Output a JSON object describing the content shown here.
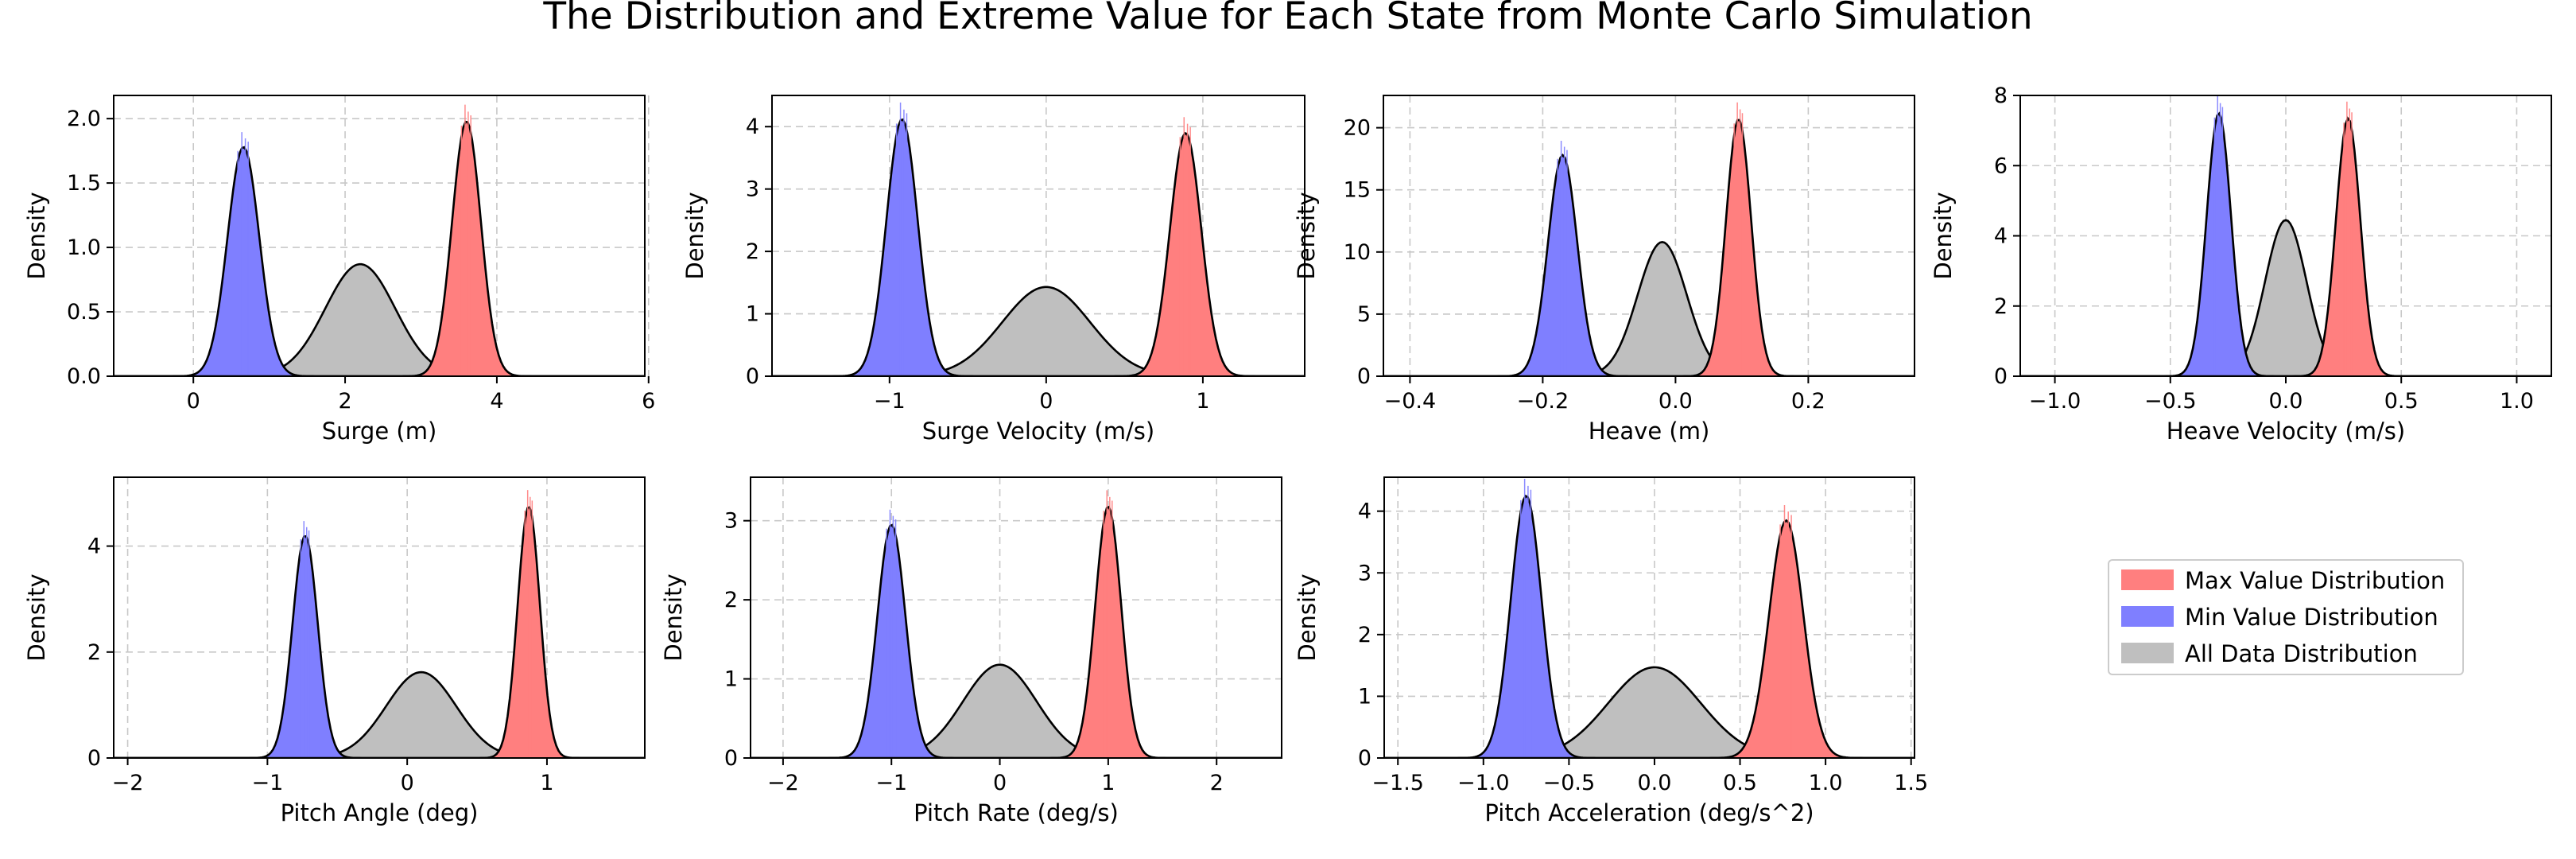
{
  "figure_title": "The Distribution and Extreme Value for Each State from Monte Carlo Simulation",
  "colors": {
    "max": "#ff7f7f",
    "min": "#7f7fff",
    "all": "#bfbfbf",
    "curve": "#000000",
    "grid": "#c8c8c8"
  },
  "legend": {
    "placement": "right of bottom row",
    "entries": [
      {
        "label": "Max Value Distribution",
        "color": "#ff7f7f"
      },
      {
        "label": "Min Value Distribution",
        "color": "#7f7fff"
      },
      {
        "label": "All Data Distribution",
        "color": "#bfbfbf"
      }
    ]
  },
  "chart_data": [
    {
      "type": "area",
      "xlabel": "Surge (m)",
      "ylabel": "Density",
      "xlim": [
        -1.05,
        5.95
      ],
      "ylim": [
        0,
        2.18
      ],
      "xticks": [
        0,
        2,
        4,
        6
      ],
      "xtick_labels": [
        "0",
        "2",
        "4",
        "6"
      ],
      "yticks": [
        0,
        0.5,
        1.0,
        1.5,
        2.0
      ],
      "ytick_labels": [
        "0.0",
        "0.5",
        "1.0",
        "1.5",
        "2.0"
      ],
      "series": [
        {
          "name": "All Data Distribution",
          "mean": 2.2,
          "sd": 0.46,
          "peak": 0.87
        },
        {
          "name": "Min Value Distribution",
          "mean": 0.66,
          "sd": 0.21,
          "peak": 1.78
        },
        {
          "name": "Max Value Distribution",
          "mean": 3.6,
          "sd": 0.19,
          "peak": 1.98
        }
      ]
    },
    {
      "type": "area",
      "xlabel": "Surge Velocity (m/s)",
      "ylabel": "Density",
      "xlim": [
        -1.75,
        1.65
      ],
      "ylim": [
        0,
        4.5
      ],
      "xticks": [
        -1,
        0,
        1
      ],
      "xtick_labels": [
        "−1",
        "0",
        "1"
      ],
      "yticks": [
        0,
        1,
        2,
        3,
        4
      ],
      "ytick_labels": [
        "0",
        "1",
        "2",
        "3",
        "4"
      ],
      "series": [
        {
          "name": "All Data Distribution",
          "mean": 0.0,
          "sd": 0.28,
          "peak": 1.43
        },
        {
          "name": "Min Value Distribution",
          "mean": -0.92,
          "sd": 0.1,
          "peak": 4.12
        },
        {
          "name": "Max Value Distribution",
          "mean": 0.89,
          "sd": 0.1,
          "peak": 3.9
        }
      ]
    },
    {
      "type": "area",
      "xlabel": "Heave (m)",
      "ylabel": "Density",
      "xlim": [
        -0.44,
        0.36
      ],
      "ylim": [
        0,
        22.6
      ],
      "xticks": [
        -0.4,
        -0.2,
        0.0,
        0.2
      ],
      "xtick_labels": [
        "−0.4",
        "−0.2",
        "0.0",
        "0.2"
      ],
      "yticks": [
        0,
        5,
        10,
        15,
        20
      ],
      "ytick_labels": [
        "0",
        "5",
        "10",
        "15",
        "20"
      ],
      "series": [
        {
          "name": "All Data Distribution",
          "mean": -0.02,
          "sd": 0.037,
          "peak": 10.8
        },
        {
          "name": "Min Value Distribution",
          "mean": -0.17,
          "sd": 0.022,
          "peak": 17.8
        },
        {
          "name": "Max Value Distribution",
          "mean": 0.095,
          "sd": 0.019,
          "peak": 20.7
        }
      ]
    },
    {
      "type": "area",
      "xlabel": "Heave Velocity (m/s)",
      "ylabel": "Density",
      "xlim": [
        -1.15,
        1.15
      ],
      "ylim": [
        0,
        8
      ],
      "xticks": [
        -1.0,
        -0.5,
        0.0,
        0.5,
        1.0
      ],
      "xtick_labels": [
        "−1.0",
        "−0.5",
        "0.0",
        "0.5",
        "1.0"
      ],
      "yticks": [
        0,
        2,
        4,
        6,
        8
      ],
      "ytick_labels": [
        "0",
        "2",
        "4",
        "6",
        "8"
      ],
      "series": [
        {
          "name": "All Data Distribution",
          "mean": 0.0,
          "sd": 0.09,
          "peak": 4.45
        },
        {
          "name": "Min Value Distribution",
          "mean": -0.29,
          "sd": 0.053,
          "peak": 7.5
        },
        {
          "name": "Max Value Distribution",
          "mean": 0.27,
          "sd": 0.053,
          "peak": 7.35
        }
      ]
    },
    {
      "type": "area",
      "xlabel": "Pitch Angle (deg)",
      "ylabel": "Density",
      "xlim": [
        -2.1,
        1.7
      ],
      "ylim": [
        0,
        5.3
      ],
      "xticks": [
        -2,
        -1,
        0,
        1
      ],
      "xtick_labels": [
        "−2",
        "−1",
        "0",
        "1"
      ],
      "yticks": [
        0,
        2,
        4
      ],
      "ytick_labels": [
        "0",
        "2",
        "4"
      ],
      "series": [
        {
          "name": "All Data Distribution",
          "mean": 0.1,
          "sd": 0.25,
          "peak": 1.62
        },
        {
          "name": "Min Value Distribution",
          "mean": -0.73,
          "sd": 0.09,
          "peak": 4.2
        },
        {
          "name": "Max Value Distribution",
          "mean": 0.87,
          "sd": 0.08,
          "peak": 4.75
        }
      ]
    },
    {
      "type": "area",
      "xlabel": "Pitch Rate (deg/s)",
      "ylabel": "Density",
      "xlim": [
        -2.3,
        2.6
      ],
      "ylim": [
        0,
        3.55
      ],
      "xticks": [
        -2,
        -1,
        0,
        1,
        2
      ],
      "xtick_labels": [
        "−2",
        "−1",
        "0",
        "1",
        "2"
      ],
      "yticks": [
        0,
        1,
        2,
        3
      ],
      "ytick_labels": [
        "0",
        "1",
        "2",
        "3"
      ],
      "series": [
        {
          "name": "All Data Distribution",
          "mean": 0.0,
          "sd": 0.34,
          "peak": 1.18
        },
        {
          "name": "Min Value Distribution",
          "mean": -1.0,
          "sd": 0.13,
          "peak": 2.95
        },
        {
          "name": "Max Value Distribution",
          "mean": 1.0,
          "sd": 0.12,
          "peak": 3.18
        }
      ]
    },
    {
      "type": "area",
      "xlabel": "Pitch Acceleration (deg/s^2)",
      "ylabel": "Density",
      "xlim": [
        -1.58,
        1.52
      ],
      "ylim": [
        0,
        4.55
      ],
      "xticks": [
        -1.5,
        -1.0,
        -0.5,
        0.0,
        0.5,
        1.0,
        1.5
      ],
      "xtick_labels": [
        "−1.5",
        "−1.0",
        "−0.5",
        "0.0",
        "0.5",
        "1.0",
        "1.5"
      ],
      "yticks": [
        0,
        1,
        2,
        3,
        4
      ],
      "ytick_labels": [
        "0",
        "1",
        "2",
        "3",
        "4"
      ],
      "series": [
        {
          "name": "All Data Distribution",
          "mean": 0.0,
          "sd": 0.27,
          "peak": 1.47
        },
        {
          "name": "Min Value Distribution",
          "mean": -0.75,
          "sd": 0.09,
          "peak": 4.25
        },
        {
          "name": "Max Value Distribution",
          "mean": 0.77,
          "sd": 0.1,
          "peak": 3.85
        }
      ]
    }
  ]
}
